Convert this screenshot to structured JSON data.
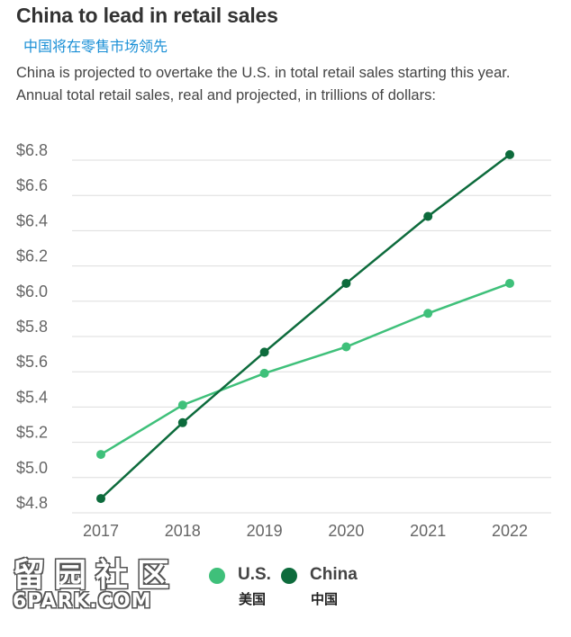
{
  "header": {
    "title": "China to lead in retail sales",
    "subtitle_cn": "中国将在零售市场领先",
    "description_line1": "China is projected to overtake the U.S. in total retail sales starting this year.",
    "description_line2": "Annual total retail sales, real and projected, in trillions of dollars:"
  },
  "colors": {
    "us": "#3fc07a",
    "china": "#0d6b3c",
    "grid": "#dddddd",
    "tick_text": "#666666"
  },
  "chart_data": {
    "type": "line",
    "title": "China to lead in retail sales",
    "categories": [
      "2017",
      "2018",
      "2019",
      "2020",
      "2021",
      "2022"
    ],
    "y_tick_labels": [
      "$4.8",
      "$5.0",
      "$5.2",
      "$5.4",
      "$5.6",
      "$5.8",
      "$6.0",
      "$6.2",
      "$6.4",
      "$6.6",
      "$6.8"
    ],
    "ylim": [
      4.8,
      6.8
    ],
    "grid": true,
    "legend_position": "bottom",
    "series": [
      {
        "name": "U.S.",
        "name_cn": "美国",
        "color": "#3fc07a",
        "values": [
          5.07,
          5.35,
          5.53,
          5.68,
          5.87,
          6.04
        ]
      },
      {
        "name": "China",
        "name_cn": "中国",
        "color": "#0d6b3c",
        "values": [
          4.82,
          5.25,
          5.65,
          6.04,
          6.42,
          6.77
        ]
      }
    ]
  },
  "watermark": {
    "cn": "留园社区",
    "en": "6PARK.COM"
  }
}
